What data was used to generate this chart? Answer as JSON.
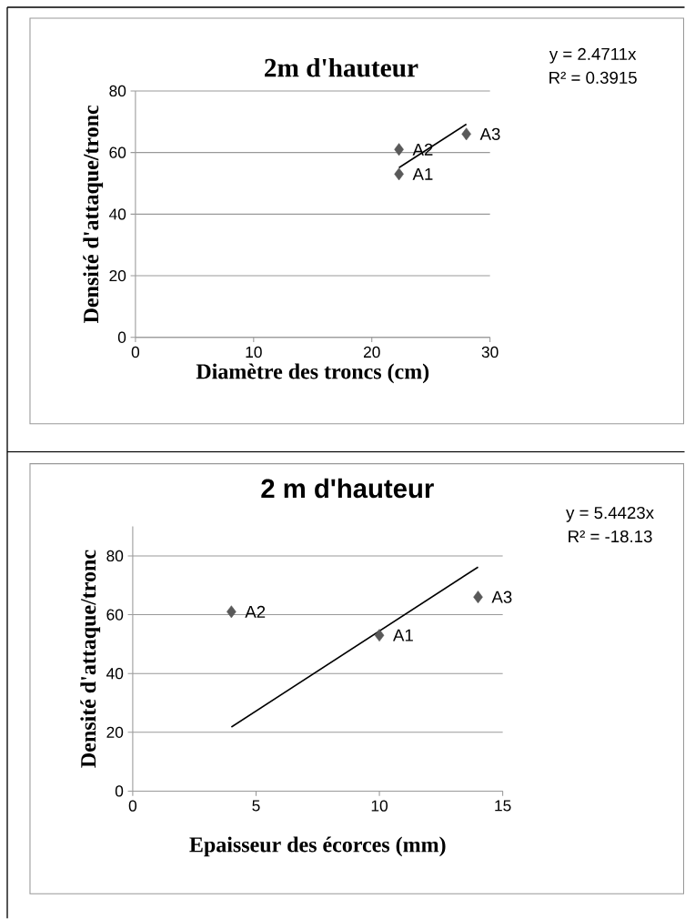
{
  "chart_data": [
    {
      "type": "scatter",
      "title": "2m d'hauteur",
      "xlabel": "Diamètre des troncs (cm)",
      "ylabel": "Densité d'attaque/tronc",
      "xlim": [
        0,
        30
      ],
      "xticks": [
        0,
        10,
        20,
        30
      ],
      "ylim": [
        0,
        80
      ],
      "yticks": [
        0,
        20,
        40,
        60,
        80
      ],
      "grid": "y",
      "marker": "diamond",
      "series": [
        {
          "x": [
            22.3,
            22.3,
            28
          ],
          "values": [
            53,
            61,
            66
          ],
          "color": "#595959"
        },
        {
          "type": "line",
          "x": [
            22.3,
            28
          ],
          "values": [
            55.1,
            69.2
          ],
          "color": "#000000",
          "marker": "none"
        }
      ],
      "annotations": [
        "y = 2.4711x",
        "R² = 0.3915",
        {
          "text": "A1",
          "x": 22.3,
          "y": 53
        },
        {
          "text": "A2",
          "x": 22.3,
          "y": 61
        },
        {
          "text": "A3",
          "x": 28,
          "y": 66
        }
      ]
    },
    {
      "type": "scatter",
      "title": "2 m d'hauteur",
      "xlabel": "Epaisseur des écorces (mm)",
      "ylabel": "Densité d'attaque/tronc",
      "xlim": [
        0,
        15
      ],
      "xticks": [
        0,
        5,
        10,
        15
      ],
      "ylim": [
        0,
        90
      ],
      "yticks": [
        0,
        20,
        40,
        60,
        80
      ],
      "grid": "y",
      "marker": "diamond",
      "series": [
        {
          "x": [
            10,
            4,
            14
          ],
          "values": [
            53,
            61,
            66
          ],
          "color": "#595959"
        },
        {
          "type": "line",
          "x": [
            4,
            14
          ],
          "values": [
            21.8,
            76.2
          ],
          "color": "#000000",
          "marker": "none"
        }
      ],
      "annotations": [
        "y = 5.4423x",
        "R² = -18.13",
        {
          "text": "A1",
          "x": 10,
          "y": 53
        },
        {
          "text": "A2",
          "x": 4,
          "y": 61
        },
        {
          "text": "A3",
          "x": 14,
          "y": 66
        }
      ]
    }
  ]
}
